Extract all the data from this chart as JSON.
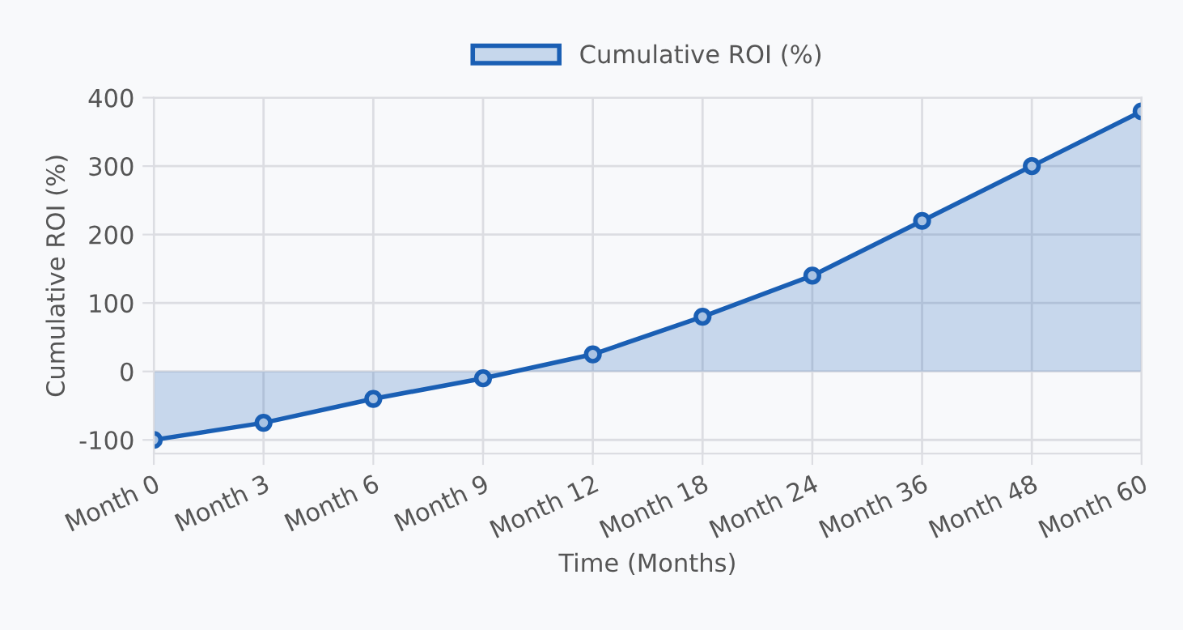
{
  "chart_data": {
    "type": "area",
    "xlabel": "Time (Months)",
    "ylabel": "Cumulative ROI (%)",
    "categories": [
      "Month 0",
      "Month 3",
      "Month 6",
      "Month 9",
      "Month 12",
      "Month 18",
      "Month 24",
      "Month 36",
      "Month 48",
      "Month 60"
    ],
    "series": [
      {
        "name": "Cumulative ROI (%)",
        "color": "#1a5fb4",
        "values": [
          -100,
          -75,
          -40,
          -10,
          25,
          80,
          140,
          220,
          300,
          380
        ]
      }
    ],
    "ylim": [
      -120,
      400
    ],
    "yticks": [
      -100,
      0,
      100,
      200,
      300,
      400
    ],
    "grid": true,
    "legend": "top",
    "marker": "circle",
    "line_style": "solid"
  }
}
